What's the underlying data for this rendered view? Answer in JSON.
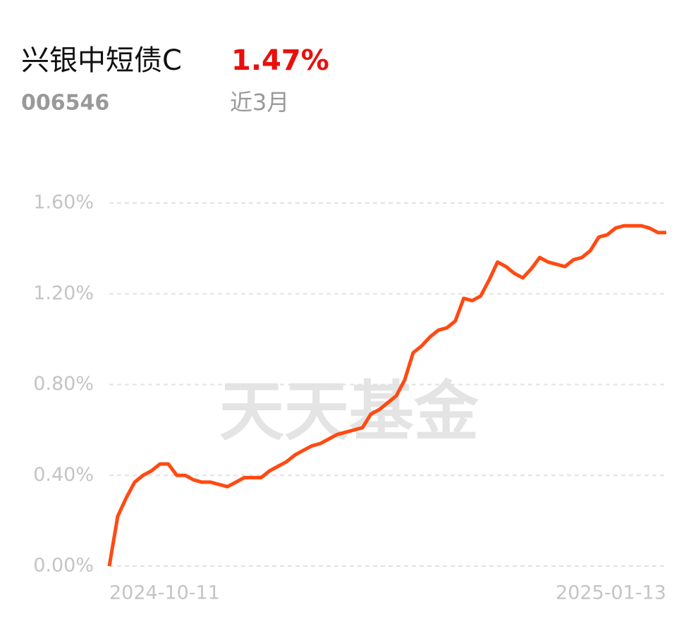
{
  "header": {
    "name": "兴银中短债C",
    "return": "1.47%",
    "code": "006546",
    "period": "近3月"
  },
  "watermark": "天天基金",
  "chart_data": {
    "type": "line",
    "categories": [
      "2024-10-11",
      null,
      null,
      null,
      null,
      null,
      null,
      null,
      null,
      null,
      null,
      null,
      null,
      null,
      null,
      null,
      null,
      null,
      null,
      null,
      null,
      null,
      null,
      null,
      null,
      null,
      null,
      null,
      null,
      null,
      null,
      null,
      null,
      null,
      null,
      null,
      null,
      null,
      null,
      null,
      null,
      null,
      null,
      null,
      null,
      null,
      null,
      null,
      null,
      null,
      null,
      null,
      null,
      null,
      null,
      null,
      null,
      null,
      null,
      null,
      null,
      null,
      null,
      null,
      null,
      null,
      "2025-01-13"
    ],
    "series": [
      {
        "color": "#ff4a12",
        "values": [
          0.0,
          0.22,
          0.3,
          0.37,
          0.4,
          0.42,
          0.45,
          0.45,
          0.4,
          0.4,
          0.38,
          0.37,
          0.37,
          0.36,
          0.35,
          0.37,
          0.39,
          0.39,
          0.39,
          0.42,
          0.44,
          0.46,
          0.49,
          0.51,
          0.53,
          0.54,
          0.56,
          0.58,
          0.59,
          0.6,
          0.61,
          0.67,
          0.69,
          0.72,
          0.75,
          0.82,
          0.94,
          0.97,
          1.01,
          1.04,
          1.05,
          1.08,
          1.18,
          1.17,
          1.19,
          1.26,
          1.34,
          1.32,
          1.29,
          1.27,
          1.31,
          1.36,
          1.34,
          1.33,
          1.32,
          1.35,
          1.36,
          1.39,
          1.45,
          1.46,
          1.49,
          1.5,
          1.5,
          1.5,
          1.49,
          1.47,
          1.47
        ]
      }
    ],
    "ylim": [
      0,
      1.6
    ],
    "yticks": [
      {
        "value": 0,
        "label": "0.00%"
      },
      {
        "value": 0.4,
        "label": "0.40%"
      },
      {
        "value": 0.8,
        "label": "0.80%"
      },
      {
        "value": 1.2,
        "label": "1.20%"
      },
      {
        "value": 1.6,
        "label": "1.60%"
      }
    ],
    "grid": true
  }
}
